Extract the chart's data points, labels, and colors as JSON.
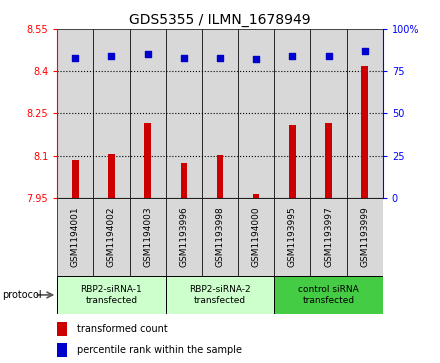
{
  "title": "GDS5355 / ILMN_1678949",
  "samples": [
    "GSM1194001",
    "GSM1194002",
    "GSM1194003",
    "GSM1193996",
    "GSM1193998",
    "GSM1194000",
    "GSM1193995",
    "GSM1193997",
    "GSM1193999"
  ],
  "bar_values": [
    8.085,
    8.105,
    8.215,
    8.075,
    8.102,
    7.965,
    8.21,
    8.215,
    8.42
  ],
  "dot_values": [
    83,
    84,
    85,
    83,
    83,
    82,
    84,
    84,
    87
  ],
  "ylim_left": [
    7.95,
    8.55
  ],
  "ylim_right": [
    0,
    100
  ],
  "yticks_left": [
    7.95,
    8.1,
    8.25,
    8.4,
    8.55
  ],
  "yticks_right": [
    0,
    25,
    50,
    75,
    100
  ],
  "bar_color": "#cc0000",
  "dot_color": "#0000cc",
  "panel_bg": "#d8d8d8",
  "protocol_groups": [
    {
      "label": "RBP2-siRNA-1\ntransfected",
      "indices": [
        0,
        1,
        2
      ],
      "color": "#ccffcc"
    },
    {
      "label": "RBP2-siRNA-2\ntransfected",
      "indices": [
        3,
        4,
        5
      ],
      "color": "#ccffcc"
    },
    {
      "label": "control siRNA\ntransfected",
      "indices": [
        6,
        7,
        8
      ],
      "color": "#44cc44"
    }
  ],
  "protocol_label": "protocol",
  "legend_bar_label": "transformed count",
  "legend_dot_label": "percentile rank within the sample",
  "title_fontsize": 10,
  "tick_fontsize": 7,
  "label_fontsize": 6.5,
  "legend_fontsize": 7
}
